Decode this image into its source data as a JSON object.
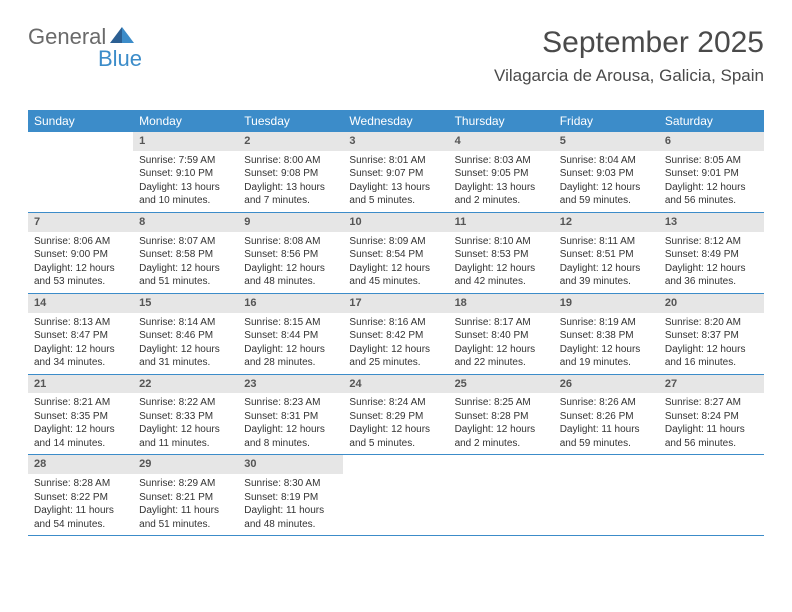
{
  "brand": {
    "word1": "General",
    "word2": "Blue"
  },
  "header": {
    "month_year": "September 2025",
    "location": "Vilagarcia de Arousa, Galicia, Spain"
  },
  "colors": {
    "accent": "#3c8cc9",
    "header_text": "#ffffff",
    "daynum_bg": "#e6e6e6",
    "rule": "#3c8cc9"
  },
  "day_names": [
    "Sunday",
    "Monday",
    "Tuesday",
    "Wednesday",
    "Thursday",
    "Friday",
    "Saturday"
  ],
  "weeks": [
    [
      null,
      {
        "n": "1",
        "sunrise": "7:59 AM",
        "sunset": "9:10 PM",
        "daylight": "13 hours and 10 minutes."
      },
      {
        "n": "2",
        "sunrise": "8:00 AM",
        "sunset": "9:08 PM",
        "daylight": "13 hours and 7 minutes."
      },
      {
        "n": "3",
        "sunrise": "8:01 AM",
        "sunset": "9:07 PM",
        "daylight": "13 hours and 5 minutes."
      },
      {
        "n": "4",
        "sunrise": "8:03 AM",
        "sunset": "9:05 PM",
        "daylight": "13 hours and 2 minutes."
      },
      {
        "n": "5",
        "sunrise": "8:04 AM",
        "sunset": "9:03 PM",
        "daylight": "12 hours and 59 minutes."
      },
      {
        "n": "6",
        "sunrise": "8:05 AM",
        "sunset": "9:01 PM",
        "daylight": "12 hours and 56 minutes."
      }
    ],
    [
      {
        "n": "7",
        "sunrise": "8:06 AM",
        "sunset": "9:00 PM",
        "daylight": "12 hours and 53 minutes."
      },
      {
        "n": "8",
        "sunrise": "8:07 AM",
        "sunset": "8:58 PM",
        "daylight": "12 hours and 51 minutes."
      },
      {
        "n": "9",
        "sunrise": "8:08 AM",
        "sunset": "8:56 PM",
        "daylight": "12 hours and 48 minutes."
      },
      {
        "n": "10",
        "sunrise": "8:09 AM",
        "sunset": "8:54 PM",
        "daylight": "12 hours and 45 minutes."
      },
      {
        "n": "11",
        "sunrise": "8:10 AM",
        "sunset": "8:53 PM",
        "daylight": "12 hours and 42 minutes."
      },
      {
        "n": "12",
        "sunrise": "8:11 AM",
        "sunset": "8:51 PM",
        "daylight": "12 hours and 39 minutes."
      },
      {
        "n": "13",
        "sunrise": "8:12 AM",
        "sunset": "8:49 PM",
        "daylight": "12 hours and 36 minutes."
      }
    ],
    [
      {
        "n": "14",
        "sunrise": "8:13 AM",
        "sunset": "8:47 PM",
        "daylight": "12 hours and 34 minutes."
      },
      {
        "n": "15",
        "sunrise": "8:14 AM",
        "sunset": "8:46 PM",
        "daylight": "12 hours and 31 minutes."
      },
      {
        "n": "16",
        "sunrise": "8:15 AM",
        "sunset": "8:44 PM",
        "daylight": "12 hours and 28 minutes."
      },
      {
        "n": "17",
        "sunrise": "8:16 AM",
        "sunset": "8:42 PM",
        "daylight": "12 hours and 25 minutes."
      },
      {
        "n": "18",
        "sunrise": "8:17 AM",
        "sunset": "8:40 PM",
        "daylight": "12 hours and 22 minutes."
      },
      {
        "n": "19",
        "sunrise": "8:19 AM",
        "sunset": "8:38 PM",
        "daylight": "12 hours and 19 minutes."
      },
      {
        "n": "20",
        "sunrise": "8:20 AM",
        "sunset": "8:37 PM",
        "daylight": "12 hours and 16 minutes."
      }
    ],
    [
      {
        "n": "21",
        "sunrise": "8:21 AM",
        "sunset": "8:35 PM",
        "daylight": "12 hours and 14 minutes."
      },
      {
        "n": "22",
        "sunrise": "8:22 AM",
        "sunset": "8:33 PM",
        "daylight": "12 hours and 11 minutes."
      },
      {
        "n": "23",
        "sunrise": "8:23 AM",
        "sunset": "8:31 PM",
        "daylight": "12 hours and 8 minutes."
      },
      {
        "n": "24",
        "sunrise": "8:24 AM",
        "sunset": "8:29 PM",
        "daylight": "12 hours and 5 minutes."
      },
      {
        "n": "25",
        "sunrise": "8:25 AM",
        "sunset": "8:28 PM",
        "daylight": "12 hours and 2 minutes."
      },
      {
        "n": "26",
        "sunrise": "8:26 AM",
        "sunset": "8:26 PM",
        "daylight": "11 hours and 59 minutes."
      },
      {
        "n": "27",
        "sunrise": "8:27 AM",
        "sunset": "8:24 PM",
        "daylight": "11 hours and 56 minutes."
      }
    ],
    [
      {
        "n": "28",
        "sunrise": "8:28 AM",
        "sunset": "8:22 PM",
        "daylight": "11 hours and 54 minutes."
      },
      {
        "n": "29",
        "sunrise": "8:29 AM",
        "sunset": "8:21 PM",
        "daylight": "11 hours and 51 minutes."
      },
      {
        "n": "30",
        "sunrise": "8:30 AM",
        "sunset": "8:19 PM",
        "daylight": "11 hours and 48 minutes."
      },
      null,
      null,
      null,
      null
    ]
  ],
  "labels": {
    "sunrise": "Sunrise:",
    "sunset": "Sunset:",
    "daylight": "Daylight:"
  }
}
